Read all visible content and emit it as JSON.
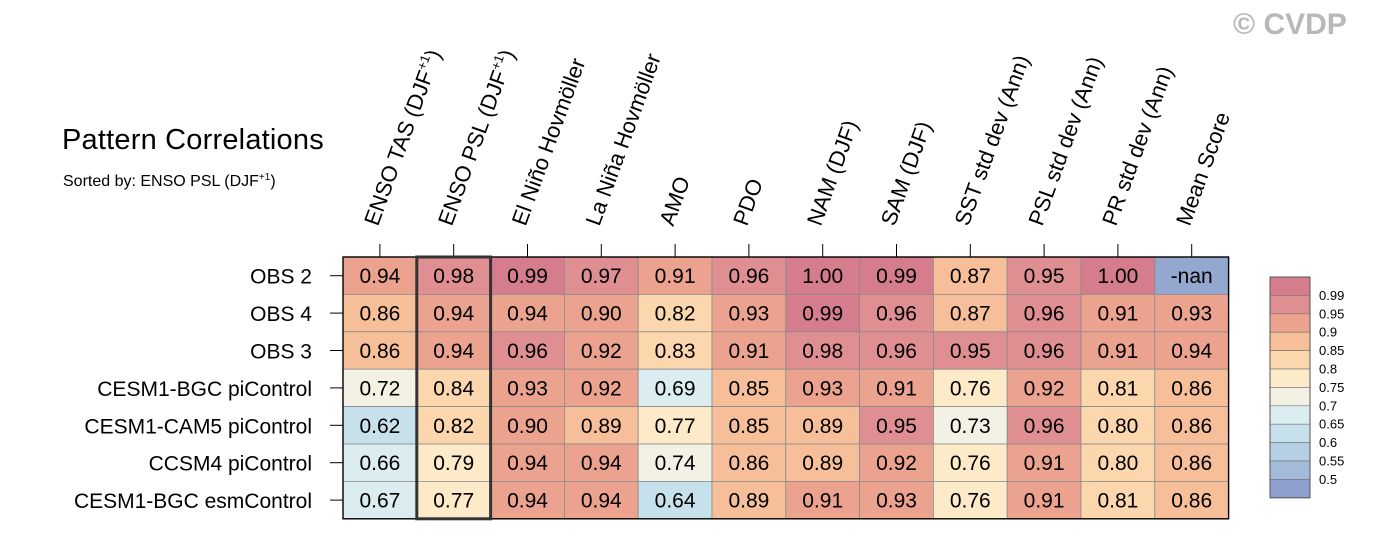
{
  "header": {
    "title": "Pattern Correlations",
    "subtitle_prefix": "Sorted by: ENSO PSL (DJF",
    "subtitle_sup": "+1",
    "subtitle_suffix": ")",
    "watermark": "© CVDP"
  },
  "chart_data": {
    "type": "heatmap",
    "title": "Pattern Correlations",
    "subtitle": "Sorted by: ENSO PSL (DJF+1)",
    "columns": [
      {
        "label": "ENSO TAS (DJF",
        "sup": "+1",
        "suffix": ")"
      },
      {
        "label": "ENSO PSL (DJF",
        "sup": "+1",
        "suffix": ")"
      },
      {
        "label": "El Niño Hovmöller",
        "sup": "",
        "suffix": ""
      },
      {
        "label": "La Niña Hovmöller",
        "sup": "",
        "suffix": ""
      },
      {
        "label": "AMO",
        "sup": "",
        "suffix": ""
      },
      {
        "label": "PDO",
        "sup": "",
        "suffix": ""
      },
      {
        "label": "NAM (DJF)",
        "sup": "",
        "suffix": ""
      },
      {
        "label": "SAM (DJF)",
        "sup": "",
        "suffix": ""
      },
      {
        "label": "SST std dev (Ann)",
        "sup": "",
        "suffix": ""
      },
      {
        "label": "PSL std dev (Ann)",
        "sup": "",
        "suffix": ""
      },
      {
        "label": "PR std dev (Ann)",
        "sup": "",
        "suffix": ""
      },
      {
        "label": "Mean Score",
        "sup": "",
        "suffix": ""
      }
    ],
    "rows": [
      "OBS 2",
      "OBS 4",
      "OBS 3",
      "CESM1-BGC piControl",
      "CESM1-CAM5 piControl",
      "CCSM4 piControl",
      "CESM1-BGC esmControl"
    ],
    "values": [
      [
        "0.94",
        "0.98",
        "0.99",
        "0.97",
        "0.91",
        "0.96",
        "1.00",
        "0.99",
        "0.87",
        "0.95",
        "1.00",
        "-nan"
      ],
      [
        "0.86",
        "0.94",
        "0.94",
        "0.90",
        "0.82",
        "0.93",
        "0.99",
        "0.96",
        "0.87",
        "0.96",
        "0.91",
        "0.93"
      ],
      [
        "0.86",
        "0.94",
        "0.96",
        "0.92",
        "0.83",
        "0.91",
        "0.98",
        "0.96",
        "0.95",
        "0.96",
        "0.91",
        "0.94"
      ],
      [
        "0.72",
        "0.84",
        "0.93",
        "0.92",
        "0.69",
        "0.85",
        "0.93",
        "0.91",
        "0.76",
        "0.92",
        "0.81",
        "0.86"
      ],
      [
        "0.62",
        "0.82",
        "0.90",
        "0.89",
        "0.77",
        "0.85",
        "0.89",
        "0.95",
        "0.73",
        "0.96",
        "0.80",
        "0.86"
      ],
      [
        "0.66",
        "0.79",
        "0.94",
        "0.94",
        "0.74",
        "0.86",
        "0.89",
        "0.92",
        "0.76",
        "0.91",
        "0.80",
        "0.86"
      ],
      [
        "0.67",
        "0.77",
        "0.94",
        "0.94",
        "0.64",
        "0.89",
        "0.91",
        "0.93",
        "0.76",
        "0.91",
        "0.81",
        "0.86"
      ]
    ],
    "highlighted_column": 1,
    "nan_color": "#94a8cf",
    "colorbar": {
      "levels": [
        "0.99",
        "0.95",
        "0.9",
        "0.85",
        "0.8",
        "0.75",
        "0.7",
        "0.65",
        "0.6",
        "0.55",
        "0.5"
      ],
      "bins": [
        {
          "lo": 0.99,
          "hi": 1.01,
          "color": "#d57d8d"
        },
        {
          "lo": 0.95,
          "hi": 0.99,
          "color": "#df8f92"
        },
        {
          "lo": 0.9,
          "hi": 0.95,
          "color": "#eba38f"
        },
        {
          "lo": 0.85,
          "hi": 0.9,
          "color": "#f6bf99"
        },
        {
          "lo": 0.8,
          "hi": 0.85,
          "color": "#fcd7ad"
        },
        {
          "lo": 0.75,
          "hi": 0.8,
          "color": "#fdeac8"
        },
        {
          "lo": 0.7,
          "hi": 0.75,
          "color": "#f3f1e4"
        },
        {
          "lo": 0.65,
          "hi": 0.7,
          "color": "#dcedf1"
        },
        {
          "lo": 0.6,
          "hi": 0.65,
          "color": "#c6e1ec"
        },
        {
          "lo": 0.55,
          "hi": 0.6,
          "color": "#b5cfe4"
        },
        {
          "lo": 0.5,
          "hi": 0.55,
          "color": "#a3bbd9"
        },
        {
          "lo": -1.0,
          "hi": 0.5,
          "color": "#8f9fce"
        }
      ]
    }
  }
}
